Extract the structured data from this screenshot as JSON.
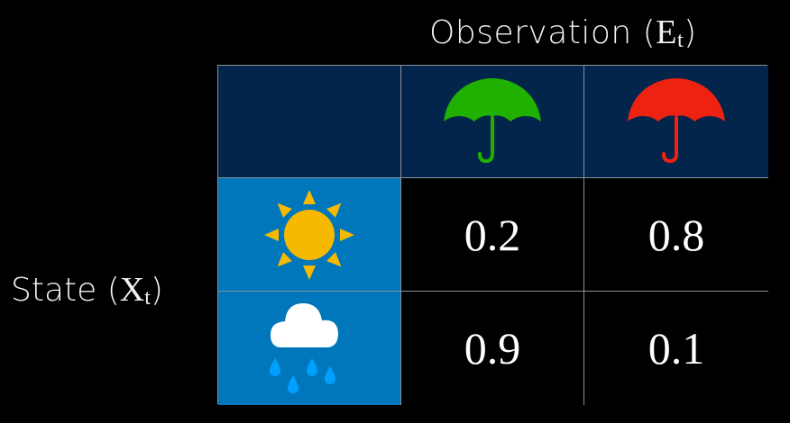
{
  "observation_label": {
    "text": "Observation (",
    "var": "E",
    "sub": "t",
    "close": ")"
  },
  "state_label": {
    "text": "State (",
    "var": "X",
    "sub": "t",
    "close": ")"
  },
  "columns": [
    {
      "icon": "umbrella-icon",
      "color": "#1fb000"
    },
    {
      "icon": "umbrella-icon",
      "color": "#ee2211"
    }
  ],
  "rows": [
    {
      "icon": "sun-icon",
      "values": [
        "0.2",
        "0.8"
      ]
    },
    {
      "icon": "rain-cloud-icon",
      "values": [
        "0.9",
        "0.1"
      ]
    }
  ],
  "colors": {
    "header_bg": "#03254c",
    "state_bg": "#0077bb",
    "sun": "#f7b900",
    "rain": "#00a0ff"
  }
}
